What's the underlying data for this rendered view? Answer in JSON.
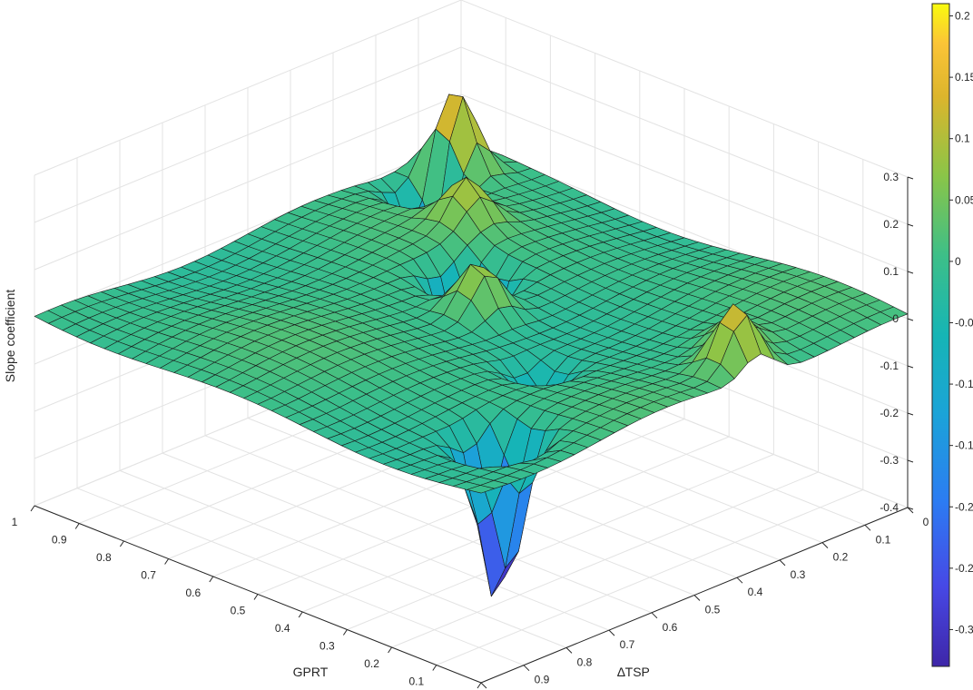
{
  "chart_data": {
    "type": "surface3d",
    "title": "",
    "xlabel": "GPRT",
    "ylabel": "∆TSP",
    "zlabel": "Slope coefficient",
    "xlim": [
      0,
      1
    ],
    "ylim": [
      0,
      1
    ],
    "zlim": [
      -0.4,
      0.3
    ],
    "x_ticks": [
      "0",
      "0.1",
      "0.2",
      "0.3",
      "0.4",
      "0.5",
      "0.6",
      "0.7",
      "0.8",
      "0.9",
      "1"
    ],
    "y_ticks": [
      "0",
      "0.1",
      "0.2",
      "0.3",
      "0.4",
      "0.5",
      "0.6",
      "0.7",
      "0.8",
      "0.9",
      "1"
    ],
    "z_ticks": [
      "-0.4",
      "-0.3",
      "-0.2",
      "-0.1",
      "0",
      "0.1",
      "0.2",
      "0.3"
    ],
    "grid": true,
    "colormap": "parula",
    "colorbar": {
      "location": "right",
      "range": [
        -0.33,
        0.21
      ],
      "ticks": [
        "-0.3",
        "-0.25",
        "-0.2",
        "-0.15",
        "-0.1",
        "-0.05",
        "0",
        "0.05",
        "0.1",
        "0.15",
        "0.2"
      ]
    },
    "surface": {
      "base_z": 0.0,
      "resolution": 32,
      "features": [
        {
          "x": 0.92,
          "y": 0.1,
          "z": 0.19,
          "note": "yellow spike"
        },
        {
          "x": 0.9,
          "y": 0.18,
          "z": -0.2,
          "note": "blue trough"
        },
        {
          "x": 0.75,
          "y": 0.25,
          "z": 0.09,
          "note": "yellow ridge"
        },
        {
          "x": 0.62,
          "y": 0.38,
          "z": -0.26,
          "note": "blue trough"
        },
        {
          "x": 0.52,
          "y": 0.46,
          "z": 0.11,
          "note": "yellow ridge"
        },
        {
          "x": 0.15,
          "y": 0.8,
          "z": -0.36,
          "note": "deep blue trough"
        },
        {
          "x": 0.3,
          "y": 0.55,
          "z": -0.08,
          "note": "valley"
        },
        {
          "x": 0.05,
          "y": 0.35,
          "z": 0.14,
          "note": "yellow peak"
        },
        {
          "x": 0.12,
          "y": 0.28,
          "z": 0.06,
          "note": "green bump"
        }
      ]
    }
  }
}
